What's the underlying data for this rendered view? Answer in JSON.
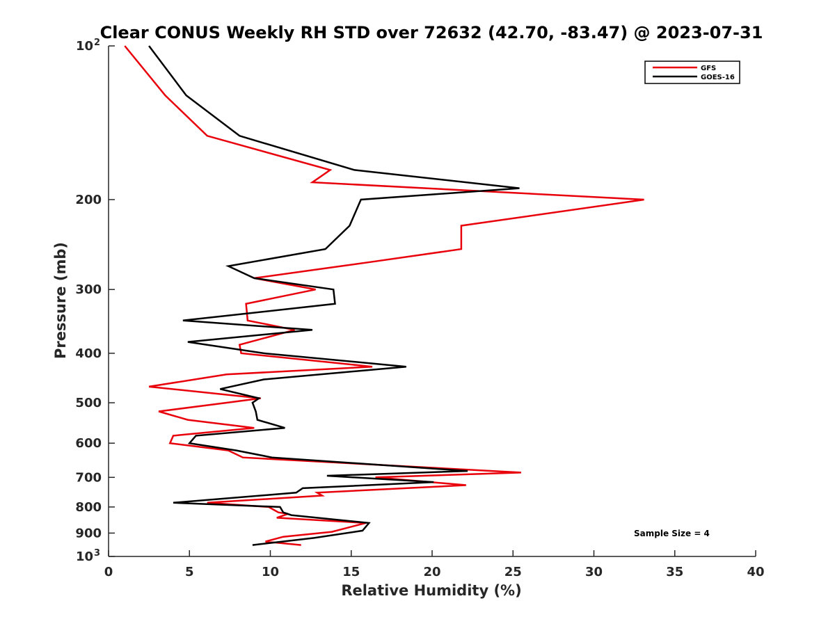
{
  "chart_data": {
    "type": "line",
    "title": "Clear CONUS Weekly RH STD over 72632 (42.70, -83.47) @ 2023-07-31",
    "xlabel": "Relative Humidity (%)",
    "ylabel": "Pressure (mb)",
    "xlim": [
      0,
      40
    ],
    "ylim": [
      100,
      1000
    ],
    "y_scale": "log",
    "y_reversed": true,
    "grid": false,
    "legend_position": "top-right",
    "x_ticks": [
      "0",
      "5",
      "10",
      "15",
      "20",
      "25",
      "30",
      "35",
      "40"
    ],
    "y_ticks": [
      {
        "value": 100,
        "label": "10",
        "sup": "2"
      },
      {
        "value": 200,
        "label": "200"
      },
      {
        "value": 300,
        "label": "300"
      },
      {
        "value": 400,
        "label": "400"
      },
      {
        "value": 500,
        "label": "500"
      },
      {
        "value": 600,
        "label": "600"
      },
      {
        "value": 700,
        "label": "700"
      },
      {
        "value": 800,
        "label": "800"
      },
      {
        "value": 900,
        "label": "900"
      },
      {
        "value": 1000,
        "label": "10",
        "sup": "3"
      }
    ],
    "annotation": "Sample Size = 4",
    "series": [
      {
        "name": "GFS",
        "color": "#e8000b",
        "points": [
          [
            1.0,
            100
          ],
          [
            3.5,
            125
          ],
          [
            6.1,
            150
          ],
          [
            13.7,
            175
          ],
          [
            12.6,
            185
          ],
          [
            33.1,
            200
          ],
          [
            21.8,
            225
          ],
          [
            21.8,
            250
          ],
          [
            16.2,
            265
          ],
          [
            9.0,
            285
          ],
          [
            12.8,
            300
          ],
          [
            8.5,
            320
          ],
          [
            8.6,
            345
          ],
          [
            11.5,
            360
          ],
          [
            8.1,
            385
          ],
          [
            8.2,
            400
          ],
          [
            16.3,
            425
          ],
          [
            7.3,
            440
          ],
          [
            2.5,
            465
          ],
          [
            9.4,
            490
          ],
          [
            7.3,
            500
          ],
          [
            3.1,
            520
          ],
          [
            4.9,
            540
          ],
          [
            9.0,
            560
          ],
          [
            4.0,
            580
          ],
          [
            3.8,
            600
          ],
          [
            7.4,
            620
          ],
          [
            8.3,
            640
          ],
          [
            25.5,
            685
          ],
          [
            16.5,
            700
          ],
          [
            22.1,
            725
          ],
          [
            12.9,
            750
          ],
          [
            13.2,
            760
          ],
          [
            6.1,
            785
          ],
          [
            9.9,
            800
          ],
          [
            10.5,
            820
          ],
          [
            11.1,
            825
          ],
          [
            10.4,
            840
          ],
          [
            15.9,
            860
          ],
          [
            13.8,
            895
          ],
          [
            10.8,
            915
          ],
          [
            9.7,
            935
          ],
          [
            11.9,
            950
          ]
        ]
      },
      {
        "name": "GOES-16",
        "color": "#000000",
        "points": [
          [
            2.5,
            100
          ],
          [
            4.8,
            125
          ],
          [
            8.1,
            150
          ],
          [
            15.2,
            175
          ],
          [
            25.4,
            190
          ],
          [
            15.6,
            200
          ],
          [
            14.9,
            225
          ],
          [
            13.4,
            250
          ],
          [
            7.4,
            270
          ],
          [
            9.0,
            285
          ],
          [
            13.9,
            300
          ],
          [
            14.0,
            320
          ],
          [
            4.6,
            345
          ],
          [
            12.6,
            360
          ],
          [
            4.9,
            380
          ],
          [
            9.6,
            400
          ],
          [
            18.4,
            425
          ],
          [
            9.6,
            450
          ],
          [
            6.9,
            470
          ],
          [
            9.3,
            490
          ],
          [
            8.9,
            500
          ],
          [
            9.1,
            520
          ],
          [
            9.2,
            540
          ],
          [
            10.9,
            560
          ],
          [
            5.4,
            580
          ],
          [
            5.0,
            600
          ],
          [
            7.9,
            620
          ],
          [
            10.1,
            640
          ],
          [
            22.2,
            680
          ],
          [
            13.5,
            695
          ],
          [
            20.1,
            715
          ],
          [
            12.0,
            735
          ],
          [
            11.6,
            750
          ],
          [
            4.0,
            785
          ],
          [
            10.6,
            800
          ],
          [
            10.8,
            820
          ],
          [
            11.3,
            830
          ],
          [
            16.1,
            860
          ],
          [
            15.7,
            890
          ],
          [
            12.7,
            920
          ],
          [
            8.9,
            950
          ]
        ]
      }
    ]
  }
}
